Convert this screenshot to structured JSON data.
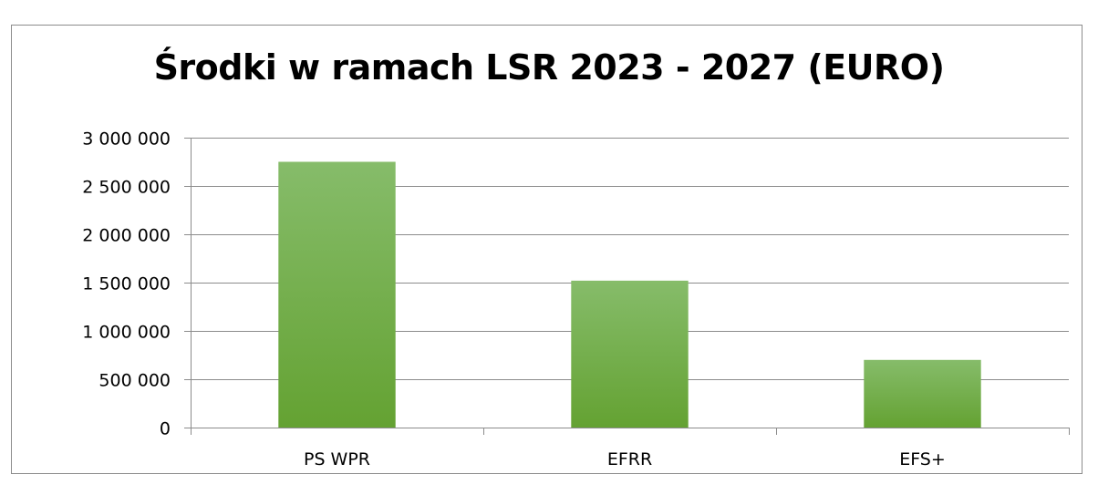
{
  "chart_data": {
    "type": "bar",
    "title": "Środki w ramach LSR 2023 - 2027 (EURO)",
    "xlabel": "",
    "ylabel": "",
    "categories": [
      "PS WPR",
      "EFRR",
      "EFS+"
    ],
    "values": [
      2750000,
      1520000,
      700000
    ],
    "ylim": [
      0,
      3000000
    ],
    "yticks": [
      0,
      500000,
      1000000,
      1500000,
      2000000,
      2500000,
      3000000
    ],
    "ytick_labels": [
      "0",
      "500 000",
      "1 000 000",
      "1 500 000",
      "2 000 000",
      "2 500 000",
      "3 000 000"
    ],
    "grid": true,
    "legend": "none",
    "colors": {
      "bar_top": "#86bc6a",
      "bar_bottom": "#64a232",
      "grid": "#8c8c8c",
      "frame": "#8c8c8c"
    }
  }
}
